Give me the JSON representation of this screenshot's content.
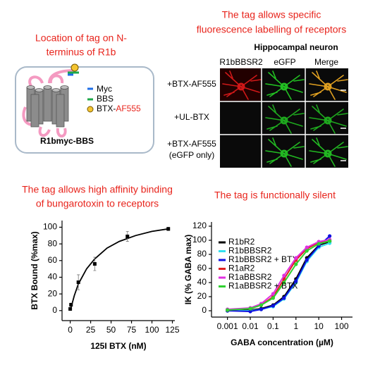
{
  "header_left": {
    "lines": [
      "Location of tag on N-",
      "terminus of R1b"
    ]
  },
  "diagram": {
    "legend": [
      "Myc",
      "BBS",
      "BTX-AF555"
    ],
    "label": "R1bmyc-BBS"
  },
  "imaging": {
    "title_lines": [
      "The tag allows specific",
      "fluorescence labelling of receptors"
    ],
    "subtitle": "Hippocampal neuron",
    "columns": [
      "R1bBBSR2",
      "eGFP",
      "Merge"
    ],
    "rows": [
      [
        "+BTX-AF555"
      ],
      [
        "+UL-BTX"
      ],
      [
        "+BTX-AF555",
        "(eGFP only)"
      ]
    ]
  },
  "chart_data": [
    {
      "type": "scatter",
      "title": [
        "The tag allows high affinity binding",
        "of bungarotoxin to receptors"
      ],
      "x_label": "125I BTX (nM)",
      "y_label": "BTX Bound (%max)",
      "x": [
        0,
        1,
        10,
        30,
        70,
        120
      ],
      "series": [
        {
          "values": [
            2,
            7,
            34,
            56,
            89,
            98
          ],
          "errors": [
            1,
            2,
            9,
            8,
            6,
            2
          ],
          "color": "#000000"
        }
      ],
      "fit": {
        "x": [
          0,
          5,
          10,
          20,
          30,
          45,
          60,
          80,
          100,
          120
        ],
        "values": [
          0,
          18,
          32,
          50,
          62,
          75,
          83,
          90,
          95,
          98
        ],
        "color": "#000000"
      },
      "xlim": [
        -10,
        128
      ],
      "ylim": [
        -12,
        108
      ],
      "xticks": [
        0,
        25,
        50,
        75,
        100,
        125
      ],
      "yticks": [
        0,
        20,
        40,
        60,
        80,
        100
      ]
    },
    {
      "type": "dose-response",
      "title": [
        "The tag is functionally silent"
      ],
      "x_label": "GABA concentration (µM)",
      "y_label": "IK (% GABA max)",
      "log_x": true,
      "x": [
        0.001,
        0.01,
        0.03,
        0.1,
        0.3,
        1,
        3,
        10,
        30
      ],
      "series": [
        {
          "name": "R1bR2",
          "color": "#000000",
          "values": [
            0,
            1,
            3,
            8,
            20,
            45,
            75,
            93,
            98
          ]
        },
        {
          "name": "R1bBBSR2",
          "color": "#33e0f0",
          "values": [
            0,
            0,
            2,
            6,
            17,
            40,
            70,
            90,
            96
          ]
        },
        {
          "name": "R1bBBSR2 + BTX",
          "color": "#1010e0",
          "values": [
            0,
            -1,
            2,
            7,
            18,
            42,
            72,
            92,
            106
          ]
        },
        {
          "name": "R1aR2",
          "color": "#e02020",
          "values": [
            1,
            3,
            8,
            20,
            45,
            72,
            88,
            97,
            100
          ]
        },
        {
          "name": "R1aBBSR2",
          "color": "#e030e0",
          "values": [
            2,
            4,
            10,
            24,
            50,
            75,
            90,
            98,
            101
          ]
        },
        {
          "name": "R1aBBSR2 + BTX",
          "color": "#30d030",
          "values": [
            1,
            3,
            8,
            18,
            40,
            66,
            85,
            95,
            99
          ]
        }
      ],
      "xlim": [
        0.0002,
        300
      ],
      "ylim": [
        -9,
        126
      ],
      "xticks": [
        0.001,
        0.01,
        0.1,
        1,
        10,
        100
      ],
      "yticks": [
        0,
        20,
        40,
        60,
        80,
        100,
        120
      ]
    }
  ]
}
